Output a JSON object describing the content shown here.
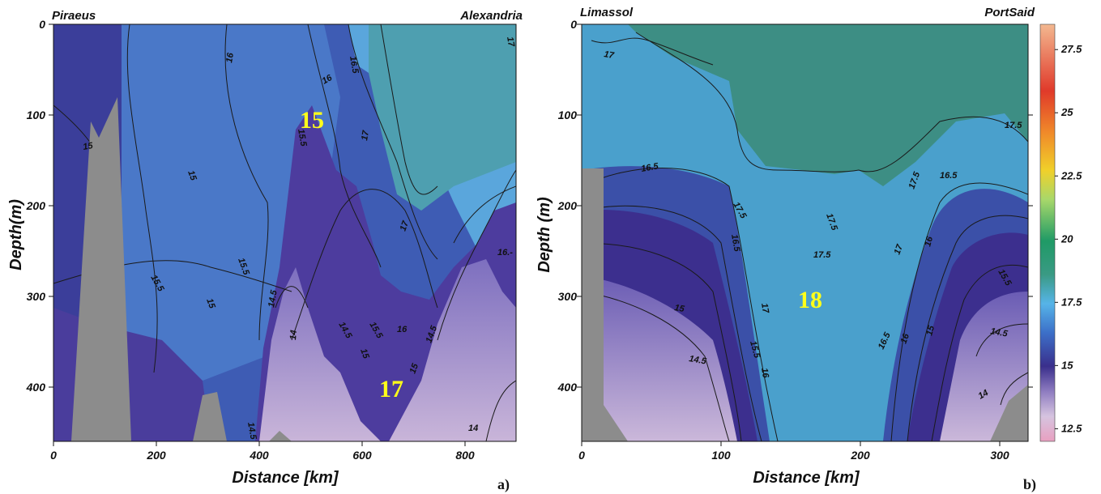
{
  "chart_data": [
    {
      "type": "heatmap",
      "panel_label": "a)",
      "xlabel": "Distance [km]",
      "ylabel": "Depth(m)",
      "xlim": [
        0,
        900
      ],
      "ylim": [
        460,
        0
      ],
      "x_ticks": [
        "0",
        "200",
        "400",
        "600",
        "800"
      ],
      "y_ticks": [
        "0",
        "100",
        "200",
        "300",
        "400"
      ],
      "stations": {
        "left": "Piraeus",
        "right": "Alexandria"
      },
      "contour_labels": [
        "16",
        "16",
        "16.5",
        "17",
        "15.5",
        "15",
        "15.5",
        "15.5",
        "15",
        "17",
        "14.5",
        "14",
        "14.5",
        "15.5",
        "16",
        "15",
        "14.5",
        "15",
        "14.5",
        "14",
        "16.-",
        "17",
        "15"
      ],
      "water_mass_labels": [
        "15",
        "17"
      ]
    },
    {
      "type": "heatmap",
      "panel_label": "b)",
      "xlabel": "Distance [km]",
      "ylabel": "Depth (m)",
      "xlim": [
        0,
        320
      ],
      "ylim": [
        460,
        0
      ],
      "x_ticks": [
        "0",
        "100",
        "200",
        "300"
      ],
      "y_ticks": [
        "0",
        "100",
        "200",
        "300",
        "400"
      ],
      "stations": {
        "left": "Limassol",
        "right": "PortSaid"
      },
      "contour_labels": [
        "17",
        "16.5",
        "17.5",
        "16.5",
        "17.5",
        "17.5",
        "17.5",
        "16.5",
        "17",
        "16",
        "15.5",
        "17",
        "15",
        "16.5",
        "16",
        "15",
        "14.5",
        "15.5",
        "16",
        "14.5",
        "14",
        "17.5"
      ],
      "water_mass_labels": [
        "18"
      ]
    }
  ],
  "colorbar": {
    "ticks": [
      "27.5",
      "25",
      "22.5",
      "20",
      "17.5",
      "15",
      "12.5"
    ],
    "range": [
      12,
      28.5
    ],
    "colors": [
      "#e8a0c0",
      "#d6c4e0",
      "#8e7cc0",
      "#3a2f8c",
      "#3c6fc8",
      "#56b4e8",
      "#3a9a84",
      "#1f9a66",
      "#a8d86a",
      "#f0d02a",
      "#f08a2a",
      "#e03a2a",
      "#f3b890"
    ]
  }
}
